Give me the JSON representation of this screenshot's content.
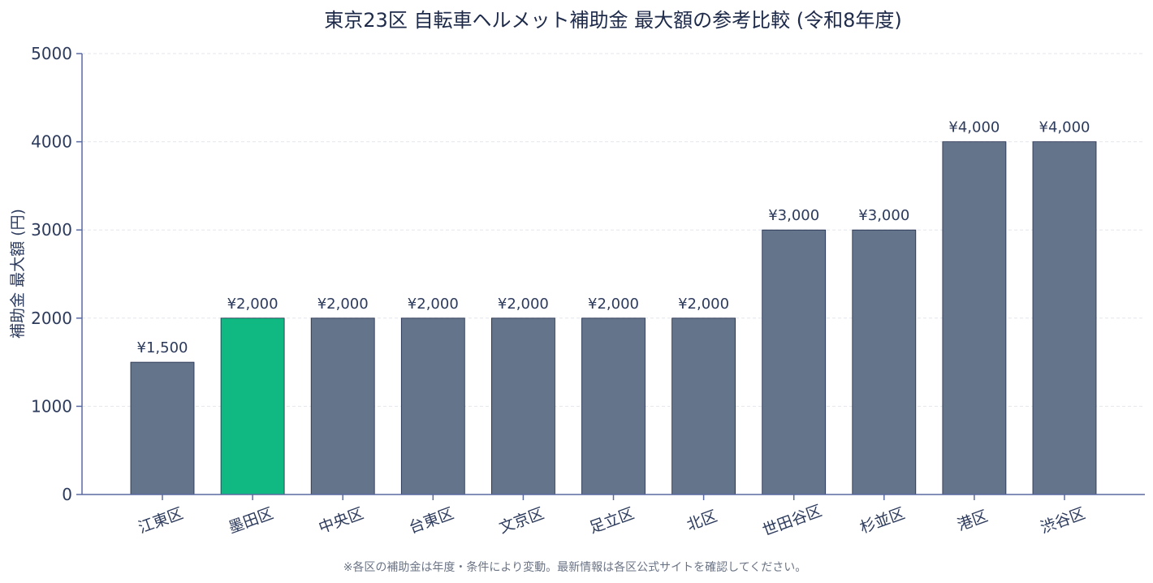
{
  "chart_data": {
    "type": "bar",
    "title": "東京23区 自転車ヘルメット補助金 最大額の参考比較 (令和8年度)",
    "xlabel": "",
    "ylabel": "補助金 最大額 (円)",
    "ylim": [
      0,
      5000
    ],
    "yticks": [
      "0",
      "1000",
      "2000",
      "3000",
      "4000",
      "5000"
    ],
    "grid": true,
    "categories": [
      "江東区",
      "墨田区",
      "中央区",
      "台東区",
      "文京区",
      "足立区",
      "北区",
      "世田谷区",
      "杉並区",
      "港区",
      "渋谷区"
    ],
    "values": [
      1500,
      2000,
      2000,
      2000,
      2000,
      2000,
      2000,
      3000,
      3000,
      4000,
      4000
    ],
    "value_labels": [
      "¥1,500",
      "¥2,000",
      "¥2,000",
      "¥2,000",
      "¥2,000",
      "¥2,000",
      "¥2,000",
      "¥3,000",
      "¥3,000",
      "¥4,000",
      "¥4,000"
    ],
    "highlight_index": 1,
    "colors": {
      "bar": "#64748b",
      "highlight": "#10b981",
      "bar_edge": "#1e2a4a",
      "axis": "#5a6aa0",
      "grid": "#e2e6ec"
    },
    "footnote": "※各区の補助金は年度・条件により変動。最新情報は各区公式サイトを確認してください。"
  }
}
